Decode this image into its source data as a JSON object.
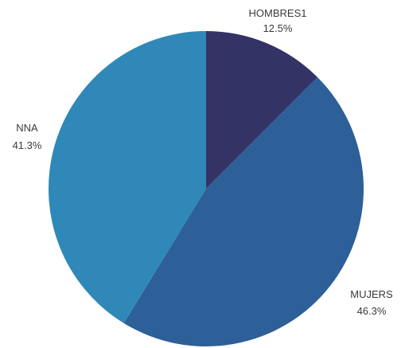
{
  "chart_data": {
    "type": "pie",
    "start_angle_deg": 0,
    "direction": "clockwise",
    "slices": [
      {
        "label": "HOMBRES1",
        "value": 12.5,
        "value_label": "12.5%",
        "color": "#333366"
      },
      {
        "label": "MUJERS",
        "value": 46.3,
        "value_label": "46.3%",
        "color": "#2d5f98"
      },
      {
        "label": "NNA",
        "value": 41.3,
        "value_label": "41.3%",
        "color": "#2f88b8"
      }
    ]
  }
}
